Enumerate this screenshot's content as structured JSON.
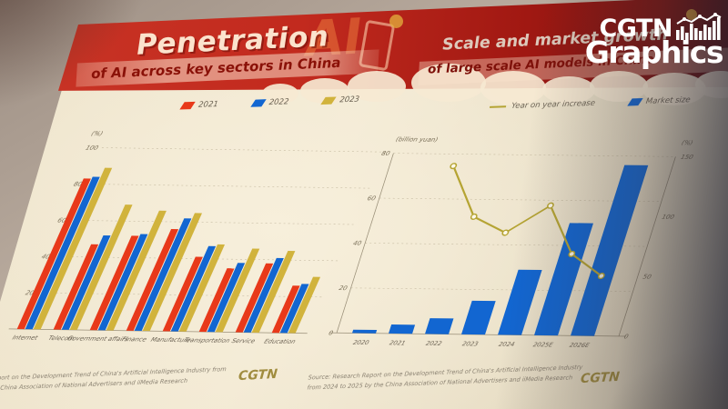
{
  "logo": {
    "cgtn": "CGTN",
    "graphics": "Graphics",
    "icon": "bar-chart-icon"
  },
  "header": {
    "left_title": "Penetration",
    "left_subtitle": "of AI across key sectors in China",
    "right_title": "Scale and market growth",
    "right_subtitle": "of large scale AI models in China",
    "ai_decoration": "AI"
  },
  "colors": {
    "red": "#e8391a",
    "blue": "#1266d1",
    "gold": "#d1b33c",
    "line_gold": "#b5a433",
    "banner_red": "#c22a1e",
    "paper": "#f2e9d3"
  },
  "chart_data": [
    {
      "type": "bar",
      "title": "Penetration of AI across key sectors in China",
      "categories": [
        "Internet",
        "Telecom",
        "Government affairs",
        "Finance",
        "Manufacture",
        "Transportation",
        "Service",
        "Education"
      ],
      "series": [
        {
          "name": "2021",
          "color": "#e8391a",
          "values": [
            83,
            47,
            52,
            56,
            41,
            35,
            38,
            26
          ]
        },
        {
          "name": "2022",
          "color": "#1266d1",
          "values": [
            84,
            52,
            53,
            62,
            47,
            38,
            41,
            27
          ]
        },
        {
          "name": "2023",
          "color": "#d1b33c",
          "values": [
            89,
            69,
            66,
            65,
            48,
            46,
            45,
            31
          ]
        }
      ],
      "ylabel": "(%)",
      "ylim": [
        0,
        100
      ],
      "yticks": [
        20,
        40,
        60,
        80,
        100
      ],
      "grid": true,
      "legend_position": "top"
    },
    {
      "type": "combo",
      "title": "Scale and market growth of large scale AI models",
      "categories": [
        "2020",
        "2021",
        "2022",
        "2023",
        "2024",
        "2025E",
        "2026E"
      ],
      "bar_series": {
        "name": "Market size",
        "color": "#1266d1",
        "values": [
          1.5,
          4,
          7,
          15,
          29,
          50,
          76
        ]
      },
      "line_series": {
        "name": "Year on year increase",
        "color": "#b5a433",
        "values": [
          null,
          140,
          98,
          85,
          108,
          68,
          50
        ]
      },
      "left_axis": {
        "label": "(billion yuan)",
        "ticks": [
          0,
          20,
          40,
          60,
          80
        ],
        "max": 80
      },
      "right_axis": {
        "label": "(%)",
        "ticks": [
          0,
          50,
          100,
          150
        ],
        "max": 150
      },
      "grid": true,
      "legend_position": "top"
    }
  ],
  "sources": {
    "left_line1": "Report on the Development Trend of China's Artificial Intelligence Industry from",
    "left_line2": "the China Association of National Advertisers and iiMedia Research",
    "left_watermark": "CGTN",
    "right_line1": "Source: Research Report on the Development Trend of China's Artificial Intelligence Industry",
    "right_line2": "from 2024 to 2025 by the China Association of National Advertisers and iiMedia Research",
    "right_watermark": "CGTN"
  }
}
